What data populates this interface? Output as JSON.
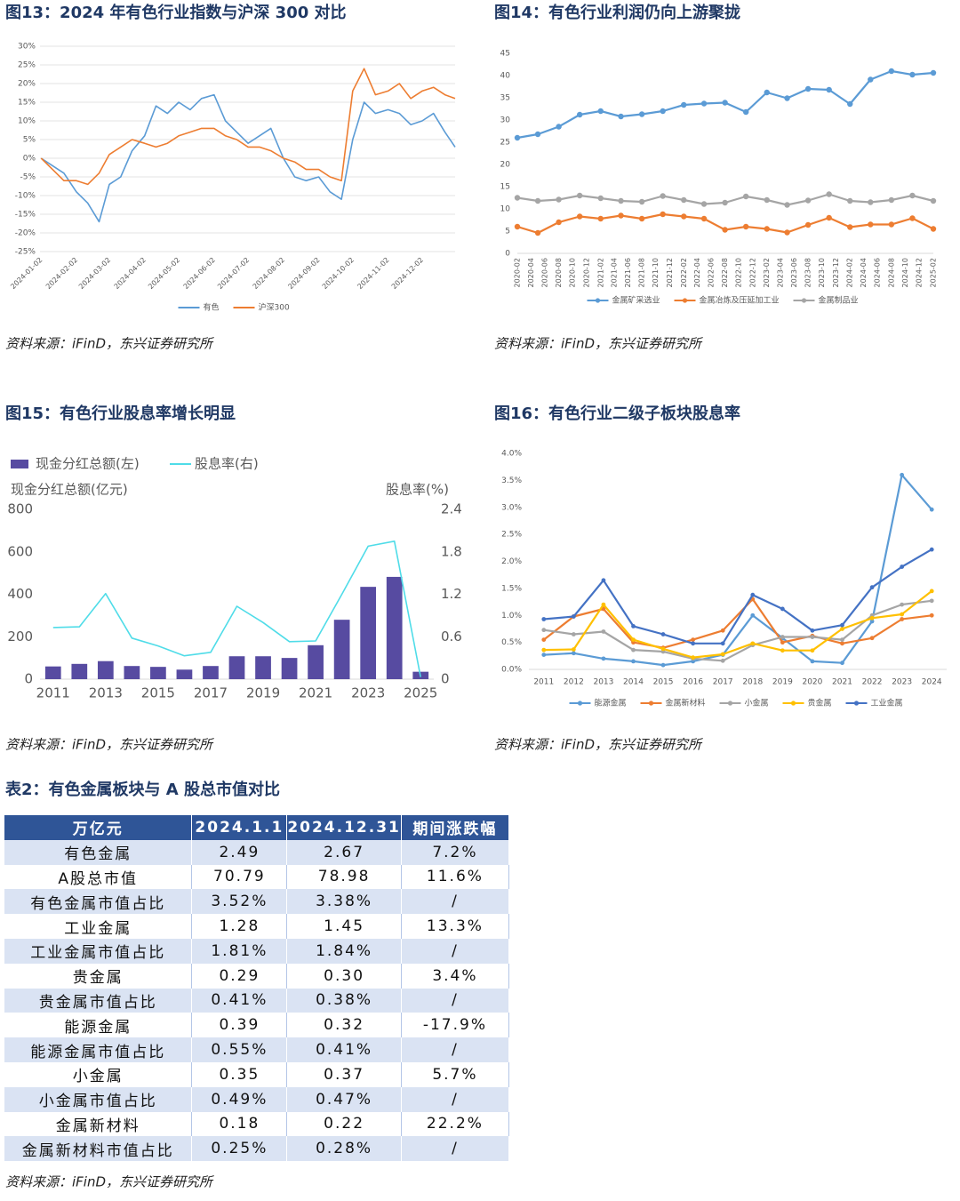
{
  "chart_data": [
    {
      "type": "line",
      "title": "图13：2024 年有色行业指数与沪深 300 对比",
      "source": "资料来源：iFinD，东兴证券研究所",
      "x": [
        "2024-01-02",
        "2024-01-12",
        "2024-01-22",
        "2024-02-02",
        "2024-02-12",
        "2024-02-22",
        "2024-03-02",
        "2024-03-12",
        "2024-03-22",
        "2024-04-02",
        "2024-04-12",
        "2024-04-22",
        "2024-05-02",
        "2024-05-12",
        "2024-05-22",
        "2024-06-02",
        "2024-06-12",
        "2024-06-22",
        "2024-07-02",
        "2024-07-12",
        "2024-07-22",
        "2024-08-02",
        "2024-08-12",
        "2024-08-22",
        "2024-09-02",
        "2024-09-12",
        "2024-09-22",
        "2024-10-02",
        "2024-10-12",
        "2024-10-22",
        "2024-11-02",
        "2024-11-12",
        "2024-11-22",
        "2024-12-02",
        "2024-12-12",
        "2024-12-22",
        "2024-12-31"
      ],
      "xlim": [
        "2024-01-01",
        "2024-12-31"
      ],
      "xticks": [
        "2024-01-02",
        "2024-02-02",
        "2024-03-02",
        "2024-04-02",
        "2024-05-02",
        "2024-06-02",
        "2024-07-02",
        "2024-08-02",
        "2024-09-02",
        "2024-10-02",
        "2024-11-02",
        "2024-12-02"
      ],
      "ylim": [
        -25,
        30
      ],
      "yticks": [
        {
          "value": -25,
          "label": "-25%"
        },
        {
          "value": -20,
          "label": "-20%"
        },
        {
          "value": -15,
          "label": "-15%"
        },
        {
          "value": -10,
          "label": "-10%"
        },
        {
          "value": -5,
          "label": "-5%"
        },
        {
          "value": 0,
          "label": "0%"
        },
        {
          "value": 5,
          "label": "5%"
        },
        {
          "value": 10,
          "label": "10%"
        },
        {
          "value": 15,
          "label": "15%"
        },
        {
          "value": 20,
          "label": "20%"
        },
        {
          "value": 25,
          "label": "25%"
        },
        {
          "value": 30,
          "label": "30%"
        }
      ],
      "grid": true,
      "markers": false,
      "legend": "bottom",
      "series": [
        {
          "name": "有色",
          "color": "#5b9bd5",
          "values": [
            0,
            -2,
            -4,
            -9,
            -12,
            -17,
            -7,
            -5,
            2,
            6,
            14,
            12,
            15,
            13,
            16,
            17,
            10,
            7,
            4,
            6,
            8,
            0,
            -5,
            -6,
            -5,
            -9,
            -11,
            5,
            15,
            12,
            13,
            12,
            9,
            10,
            12,
            7,
            3
          ]
        },
        {
          "name": "沪深300",
          "color": "#ed7d31",
          "values": [
            0,
            -3,
            -6,
            -6,
            -7,
            -4,
            1,
            3,
            5,
            4,
            3,
            4,
            6,
            7,
            8,
            8,
            6,
            5,
            3,
            3,
            2,
            0,
            -1,
            -3,
            -3,
            -5,
            -6,
            18,
            24,
            17,
            18,
            20,
            16,
            18,
            19,
            17,
            16
          ]
        }
      ]
    },
    {
      "type": "line",
      "title": "图14：有色行业利润仍向上游聚拢",
      "source": "资料来源：iFinD，东兴证券研究所",
      "x": [
        "2020-02",
        "2020-05",
        "2020-08",
        "2020-11",
        "2021-02",
        "2021-05",
        "2021-08",
        "2021-11",
        "2022-02",
        "2022-05",
        "2022-08",
        "2022-11",
        "2023-02",
        "2023-05",
        "2023-08",
        "2023-11",
        "2024-02",
        "2024-05",
        "2024-08",
        "2024-11",
        "2025-02"
      ],
      "xlim": [
        "2020-02",
        "2025-02"
      ],
      "xticks": [
        "2020-02",
        "2020-04",
        "2020-06",
        "2020-08",
        "2020-10",
        "2020-12",
        "2021-02",
        "2021-04",
        "2021-06",
        "2021-08",
        "2021-10",
        "2021-12",
        "2022-02",
        "2022-04",
        "2022-06",
        "2022-08",
        "2022-10",
        "2022-12",
        "2023-02",
        "2023-04",
        "2023-06",
        "2023-08",
        "2023-10",
        "2023-12",
        "2024-02",
        "2024-04",
        "2024-06",
        "2024-08",
        "2024-10",
        "2024-12",
        "2025-02"
      ],
      "ylim": [
        0,
        45
      ],
      "yticks": [
        0,
        5,
        10,
        15,
        20,
        25,
        30,
        35,
        40,
        45
      ],
      "grid": false,
      "markers": true,
      "legend": "bottom",
      "series": [
        {
          "name": "金属矿采选业",
          "color": "#5b9bd5",
          "values": [
            26,
            26.8,
            28.5,
            31.2,
            32,
            30.8,
            31.3,
            32,
            33.4,
            33.7,
            33.9,
            31.8,
            36.2,
            34.9,
            37,
            36.8,
            33.6,
            39.1,
            41,
            40.2,
            40.6
          ]
        },
        {
          "name": "金属冶炼及压延加工业",
          "color": "#ed7d31",
          "values": [
            6,
            4.6,
            7,
            8.3,
            7.8,
            8.5,
            7.8,
            8.8,
            8.3,
            7.8,
            5.3,
            6,
            5.5,
            4.7,
            6.4,
            8,
            5.9,
            6.5,
            6.5,
            7.9,
            5.5
          ]
        },
        {
          "name": "金属制品业",
          "color": "#a5a5a5",
          "values": [
            12.5,
            11.8,
            12.1,
            13,
            12.4,
            11.8,
            11.6,
            12.9,
            12,
            11.1,
            11.4,
            12.8,
            12,
            10.9,
            11.9,
            13.3,
            11.8,
            11.5,
            12,
            13,
            11.8
          ]
        }
      ]
    },
    {
      "type": "bar",
      "title": "图15：有色行业股息率增长明显",
      "source": "资料来源：iFinD，东兴证券研究所",
      "ylabel": "现金分红总额(亿元)",
      "y2label": "股息率(%)",
      "categories": [
        "2011",
        null,
        "2013",
        null,
        "2015",
        null,
        "2017",
        null,
        "2019",
        null,
        "2021",
        null,
        "2023",
        null,
        "2025"
      ],
      "ylim": [
        0,
        800
      ],
      "yticks": [
        0,
        200,
        400,
        600,
        800
      ],
      "y2lim": [
        0,
        2.4
      ],
      "y2ticks": [
        0,
        0.6,
        1.2,
        1.8,
        2.4
      ],
      "grid": false,
      "markers": false,
      "legend": "top",
      "series": [
        {
          "name": "现金分红总额(左)",
          "type": "bar",
          "color": "#574ba1",
          "values": [
            60,
            72,
            85,
            62,
            58,
            45,
            62,
            108,
            108,
            100,
            160,
            280,
            435,
            482,
            35
          ]
        },
        {
          "name": "股息率(右)",
          "type": "line",
          "axis": "y2",
          "color": "#4fdce8",
          "values": [
            0.73,
            0.74,
            1.21,
            0.58,
            0.47,
            0.33,
            0.38,
            1.03,
            0.8,
            0.53,
            0.54,
            1.2,
            1.88,
            1.95,
            0.03
          ]
        }
      ]
    },
    {
      "type": "line",
      "title": "图16：有色行业二级子板块股息率",
      "source": "资料来源：iFinD，东兴证券研究所",
      "categories": [
        "2011",
        "2012",
        "2013",
        "2014",
        "2015",
        "2016",
        "2017",
        "2018",
        "2019",
        "2020",
        "2021",
        "2022",
        "2023",
        "2024"
      ],
      "ylim": [
        0,
        4
      ],
      "yticks": [
        {
          "value": 0,
          "label": "0.0%"
        },
        {
          "value": 0.5,
          "label": "0.5%"
        },
        {
          "value": 1,
          "label": "1.0%"
        },
        {
          "value": 1.5,
          "label": "1.5%"
        },
        {
          "value": 2,
          "label": "2.0%"
        },
        {
          "value": 2.5,
          "label": "2.5%"
        },
        {
          "value": 3,
          "label": "3.0%"
        },
        {
          "value": 3.5,
          "label": "3.5%"
        },
        {
          "value": 4,
          "label": "4.0%"
        }
      ],
      "grid": false,
      "markers": true,
      "legend": "bottom",
      "series": [
        {
          "name": "能源金属",
          "color": "#5b9bd5",
          "values": [
            0.27,
            0.3,
            0.2,
            0.15,
            0.08,
            0.15,
            0.27,
            1.0,
            0.58,
            0.15,
            0.12,
            0.89,
            3.6,
            2.96
          ]
        },
        {
          "name": "金属新材料",
          "color": "#ed7d31",
          "values": [
            0.55,
            0.98,
            1.12,
            0.5,
            0.4,
            0.55,
            0.72,
            1.3,
            0.5,
            0.62,
            0.48,
            0.58,
            0.93,
            1.0
          ]
        },
        {
          "name": "小金属",
          "color": "#a5a5a5",
          "values": [
            0.73,
            0.65,
            0.7,
            0.36,
            0.33,
            0.2,
            0.16,
            0.45,
            0.6,
            0.6,
            0.55,
            1.0,
            1.2,
            1.27
          ]
        },
        {
          "name": "贵金属",
          "color": "#ffc000",
          "values": [
            0.36,
            0.37,
            1.2,
            0.55,
            0.38,
            0.22,
            0.28,
            0.48,
            0.35,
            0.35,
            0.75,
            0.95,
            1.02,
            1.45
          ]
        },
        {
          "name": "工业金属",
          "color": "#4472c4",
          "values": [
            0.93,
            0.98,
            1.65,
            0.8,
            0.65,
            0.48,
            0.48,
            1.38,
            1.12,
            0.72,
            0.82,
            1.52,
            1.9,
            2.22
          ]
        }
      ]
    }
  ],
  "table": {
    "title": "表2：有色金属板块与 A 股总市值对比",
    "source": "资料来源：iFinD，东兴证券研究所",
    "header": [
      "万亿元",
      "2024.1.1",
      "2024.12.31",
      "期间涨跌幅"
    ],
    "rows": [
      [
        "有色金属",
        "2.49",
        "2.67",
        "7.2%"
      ],
      [
        "A股总市值",
        "70.79",
        "78.98",
        "11.6%"
      ],
      [
        "有色金属市值占比",
        "3.52%",
        "3.38%",
        "/"
      ],
      [
        "工业金属",
        "1.28",
        "1.45",
        "13.3%"
      ],
      [
        "工业金属市值占比",
        "1.81%",
        "1.84%",
        "/"
      ],
      [
        "贵金属",
        "0.29",
        "0.30",
        "3.4%"
      ],
      [
        "贵金属市值占比",
        "0.41%",
        "0.38%",
        "/"
      ],
      [
        "能源金属",
        "0.39",
        "0.32",
        "-17.9%"
      ],
      [
        "能源金属市值占比",
        "0.55%",
        "0.41%",
        "/"
      ],
      [
        "小金属",
        "0.35",
        "0.37",
        "5.7%"
      ],
      [
        "小金属市值占比",
        "0.49%",
        "0.47%",
        "/"
      ],
      [
        "金属新材料",
        "0.18",
        "0.22",
        "22.2%"
      ],
      [
        "金属新材料市值占比",
        "0.25%",
        "0.28%",
        "/"
      ]
    ]
  }
}
